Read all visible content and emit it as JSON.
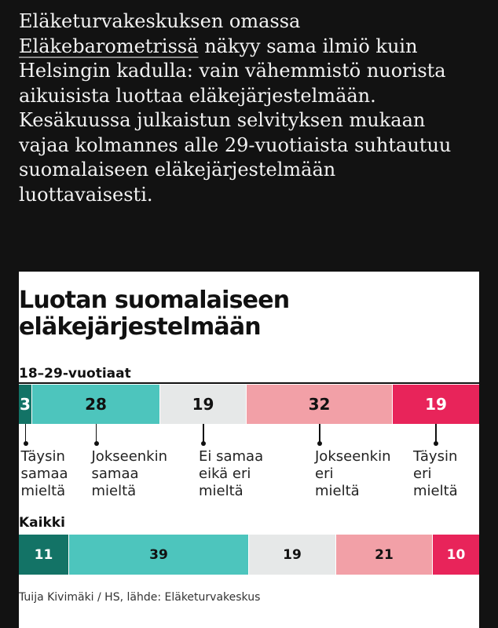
{
  "article": {
    "lines": [
      "Eläketurvakeskuksen omassa",
      "näkyy sama ilmiö kuin",
      "Helsingin kadulla: vain vähemmistö nuorista",
      "aikuisista luottaa eläkejärjestelmään.",
      "Kesäkuussa julkaistun selvityksen mukaan",
      "vajaa kolmannes alle 29-vuotiaista suhtautuu",
      "suomalaiseen eläkejärjestelmään",
      "luottavaisesti."
    ],
    "link_text": "Eläkebarometrissä"
  },
  "chart_data": {
    "type": "bar",
    "title_lines": [
      "Luotan suomalaiseen",
      "eläkejärjestelmään"
    ],
    "categories": [
      [
        "Täysin",
        "samaa",
        "mieltä"
      ],
      [
        "Jokseenkin",
        "samaa",
        "mieltä"
      ],
      [
        "Ei samaa",
        "eikä eri",
        "mieltä"
      ],
      [
        "Jokseenkin",
        "eri",
        "mieltä"
      ],
      [
        "Täysin",
        "eri",
        "mieltä"
      ]
    ],
    "series": [
      {
        "name": "18–29-vuotiaat",
        "values": [
          3,
          28,
          19,
          32,
          19
        ]
      },
      {
        "name": "Kaikki",
        "values": [
          11,
          39,
          19,
          21,
          10
        ]
      }
    ],
    "colors": [
      "#137366",
      "#4dc5bd",
      "#e6e8e8",
      "#f2a0a7",
      "#e8245a"
    ],
    "label_colors": [
      "#ffffff",
      "#111111",
      "#111111",
      "#111111",
      "#ffffff"
    ],
    "source": "Tuija Kivimäki / HS, lähde: Eläketurvakeskus"
  }
}
